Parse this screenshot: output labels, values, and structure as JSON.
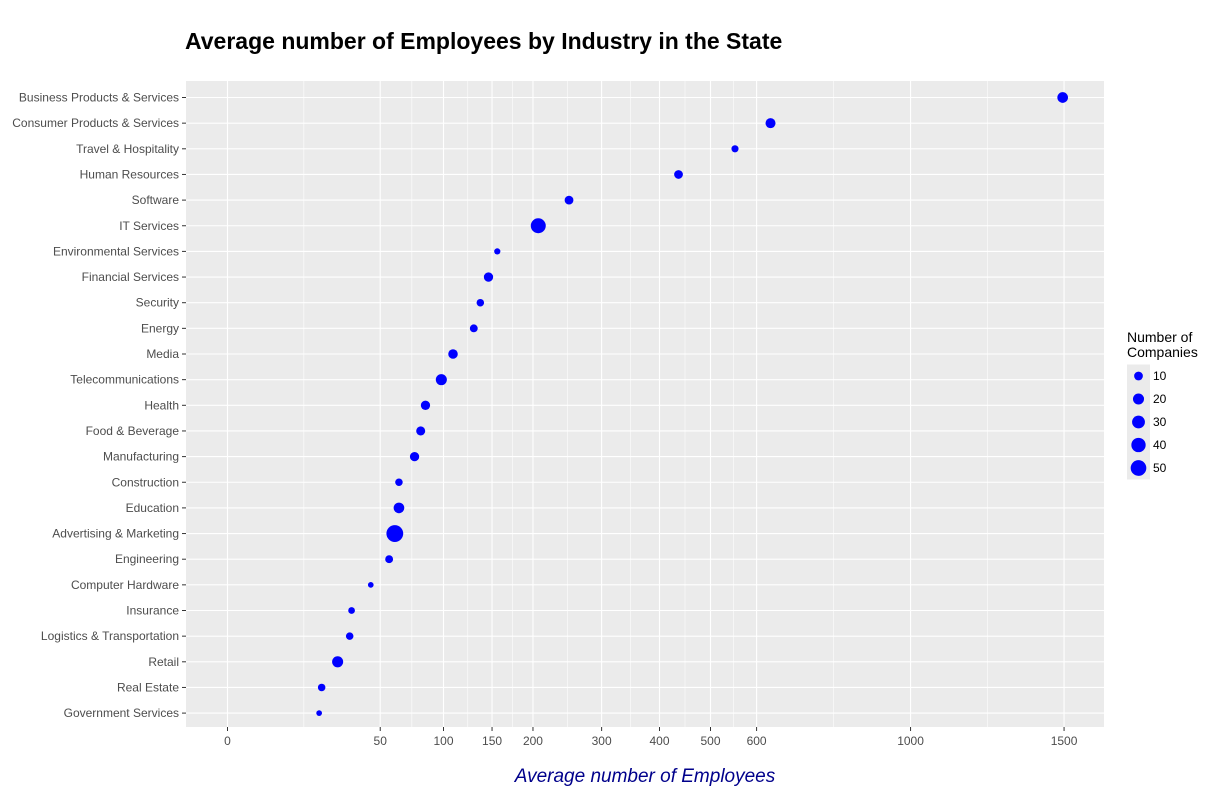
{
  "chart_data": {
    "type": "scatter",
    "title": "Average number of Employees by Industry in the State",
    "xlabel": "Average number of Employees",
    "ylabel": "",
    "x_scale": "sqrt",
    "xlim": [
      -10,
      1560
    ],
    "x_ticks": [
      0,
      50,
      100,
      150,
      200,
      300,
      400,
      500,
      600,
      1000,
      1500
    ],
    "grid": true,
    "point_color": "#0000ff",
    "panel_color": "#ebebeb",
    "categories": [
      "Business Products & Services",
      "Consumer Products & Services",
      "Travel & Hospitality",
      "Human Resources",
      "Software",
      "IT Services",
      "Environmental Services",
      "Financial Services",
      "Security",
      "Energy",
      "Media",
      "Telecommunications",
      "Health",
      "Food & Beverage",
      "Manufacturing",
      "Construction",
      "Education",
      "Advertising & Marketing",
      "Engineering",
      "Computer Hardware",
      "Insurance",
      "Logistics & Transportation",
      "Retail",
      "Real Estate",
      "Government Services"
    ],
    "x": [
      1495,
      632,
      552,
      436,
      250,
      207,
      156,
      146,
      137,
      130,
      109,
      98,
      84,
      80,
      75,
      63,
      63,
      60,
      56,
      44,
      33,
      32,
      26,
      19,
      18
    ],
    "size": [
      18,
      15,
      5,
      10,
      10,
      45,
      3,
      12,
      6,
      7,
      13,
      20,
      12,
      11,
      12,
      6,
      18,
      60,
      7,
      2,
      4,
      6,
      20,
      6,
      2
    ],
    "legend": {
      "title": "Number of\nCompanies",
      "placement": "right",
      "breaks": [
        10,
        20,
        30,
        40,
        50
      ]
    }
  }
}
